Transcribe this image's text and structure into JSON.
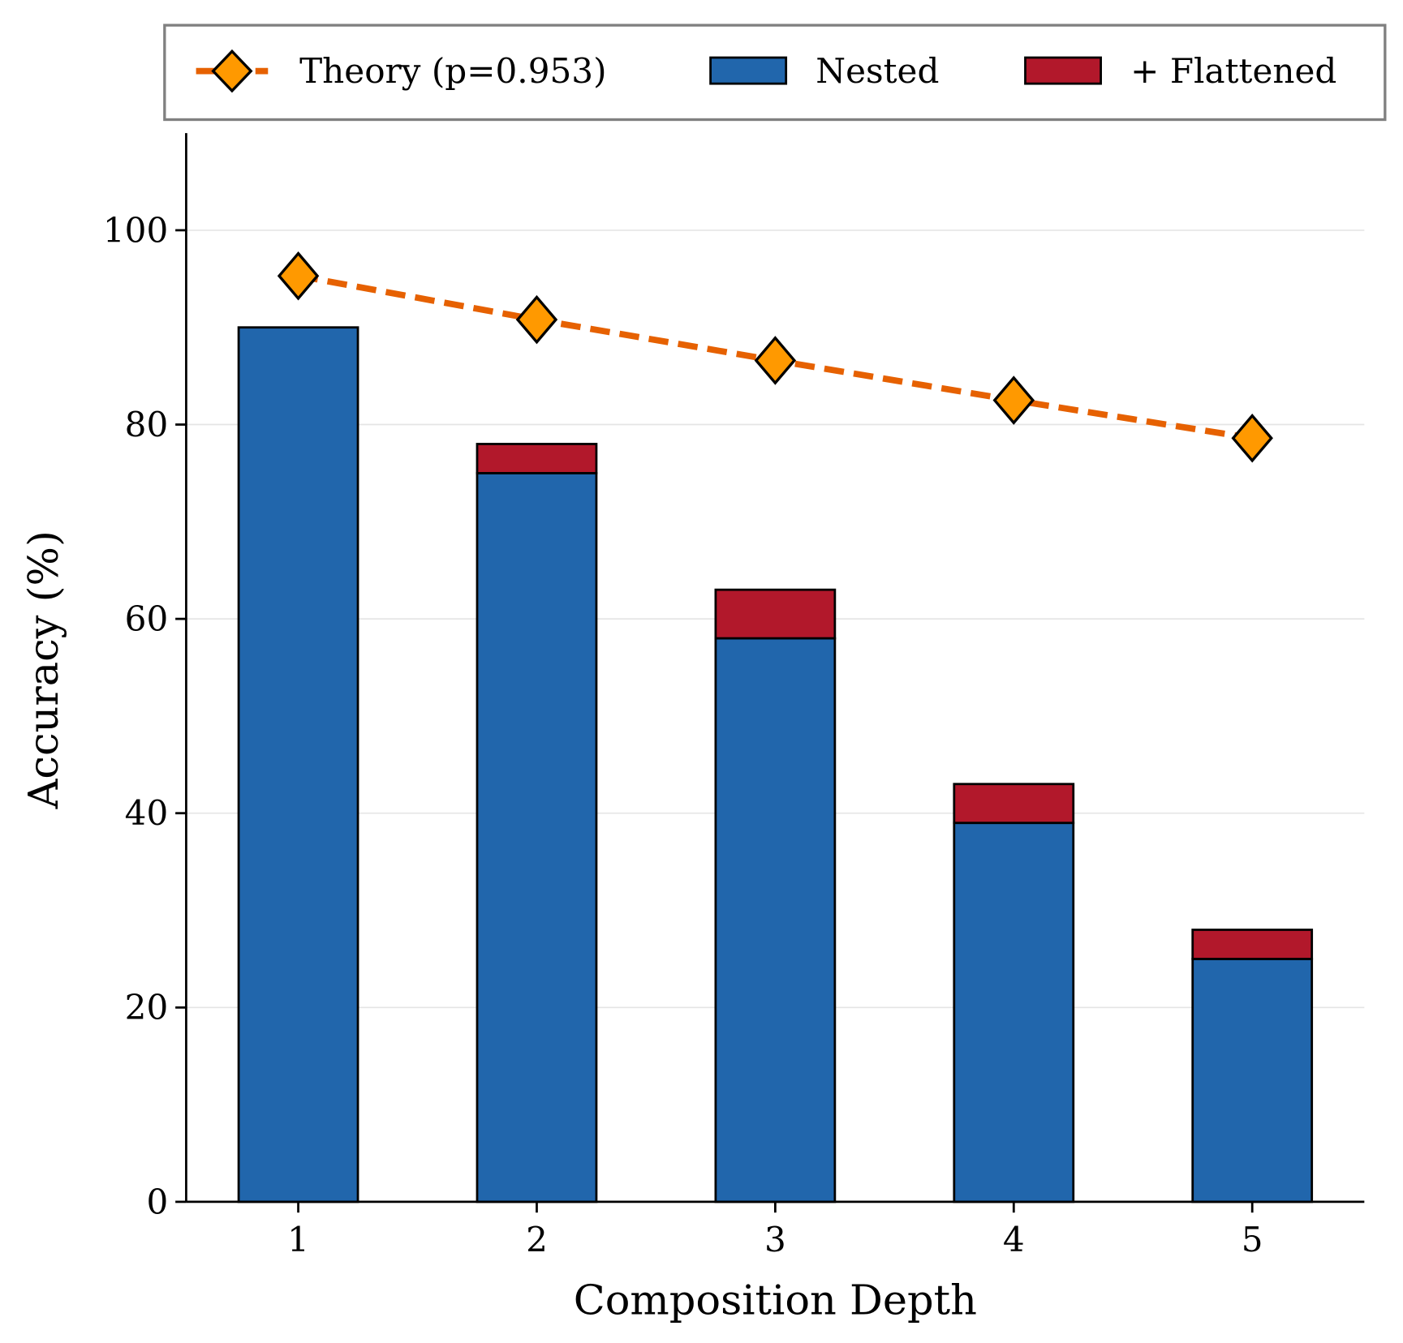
{
  "chart_data": {
    "type": "bar",
    "stacked": true,
    "xlabel": "Composition Depth",
    "ylabel": "Accuracy (%)",
    "categories": [
      "1",
      "2",
      "3",
      "4",
      "5"
    ],
    "x": [
      1,
      2,
      3,
      4,
      5
    ],
    "xlim": [
      0.53,
      5.47
    ],
    "ylim": [
      0,
      110
    ],
    "yticks": [
      0,
      20,
      40,
      60,
      80,
      100
    ],
    "grid": "horizontal",
    "legend_position": "top (above plot)",
    "legend": {
      "theory": "Theory (p=0.953)",
      "nested": "Nested",
      "flattened": "+ Flattened"
    },
    "series": [
      {
        "name": "Nested",
        "kind": "bar",
        "color": "#2166ac",
        "values": [
          90,
          75,
          58,
          39,
          25
        ]
      },
      {
        "name": "+ Flattened",
        "kind": "bar-stacked",
        "color": "#b2182b",
        "values": [
          0,
          3,
          5,
          4,
          3
        ]
      },
      {
        "name": "Theory (p=0.953)",
        "kind": "line",
        "line_color": "#e66101",
        "marker_color": "#ff9900",
        "marker": "diamond",
        "dashed": true,
        "values": [
          95.3,
          90.8,
          86.6,
          82.5,
          78.6
        ]
      }
    ]
  }
}
